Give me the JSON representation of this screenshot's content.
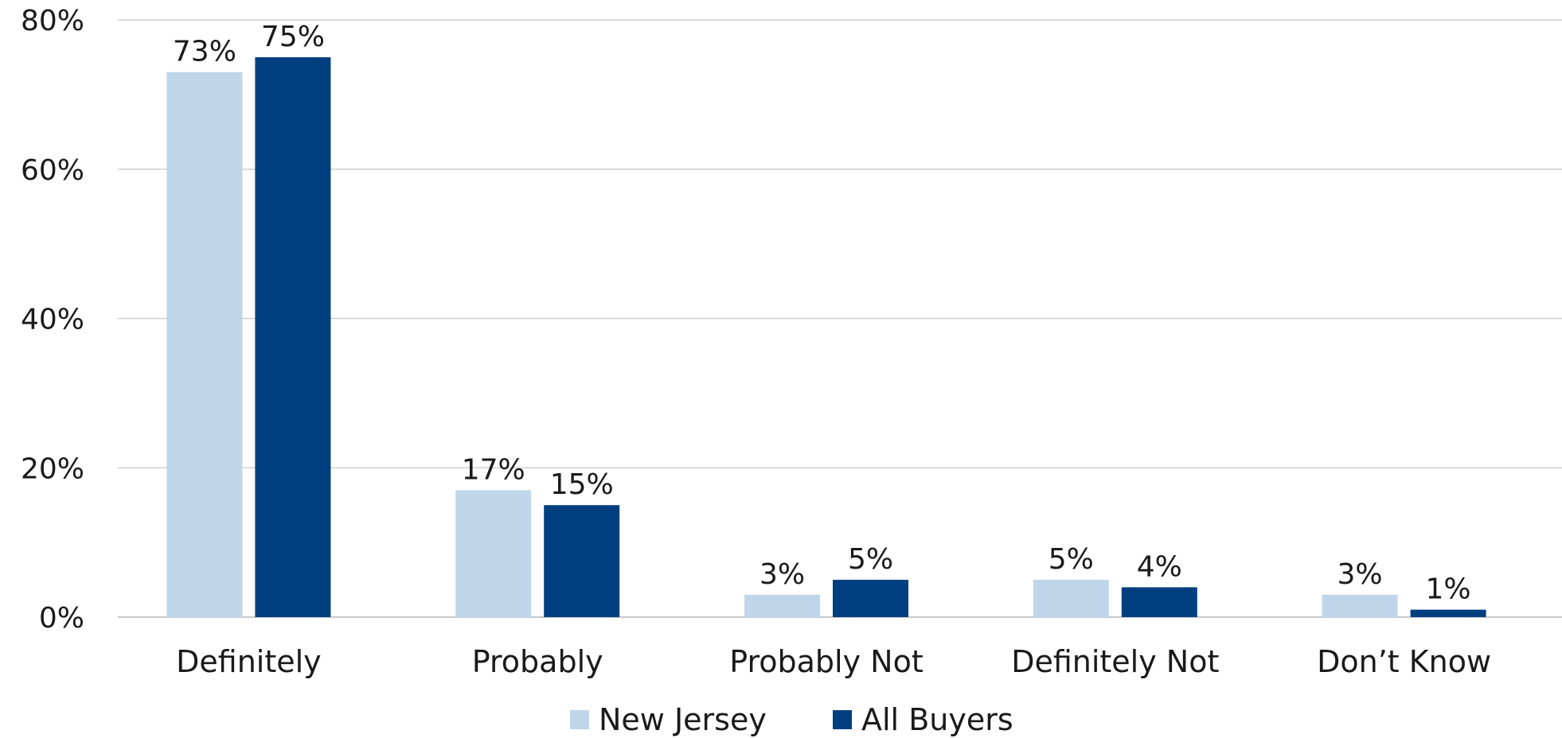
{
  "chart_data": {
    "type": "bar",
    "title": "",
    "xlabel": "",
    "ylabel": "",
    "categories": [
      "Definitely",
      "Probably",
      "Probably Not",
      "Definitely Not",
      "Don’t Know"
    ],
    "series": [
      {
        "name": "New Jersey",
        "values": [
          73,
          17,
          3,
          5,
          3
        ],
        "labels": [
          "73%",
          "17%",
          "3%",
          "5%",
          "3%"
        ],
        "color": "#bfd6ea"
      },
      {
        "name": "All Buyers",
        "values": [
          75,
          15,
          5,
          4,
          1
        ],
        "labels": [
          "75%",
          "15%",
          "5%",
          "4%",
          "1%"
        ],
        "color": "#003f7f"
      }
    ],
    "ylim": [
      0,
      80
    ],
    "yticks": [
      0,
      20,
      40,
      60,
      80
    ],
    "ytick_labels": [
      "0%",
      "20%",
      "40%",
      "60%",
      "80%"
    ],
    "grid": true,
    "legend_position": "bottom-center"
  }
}
